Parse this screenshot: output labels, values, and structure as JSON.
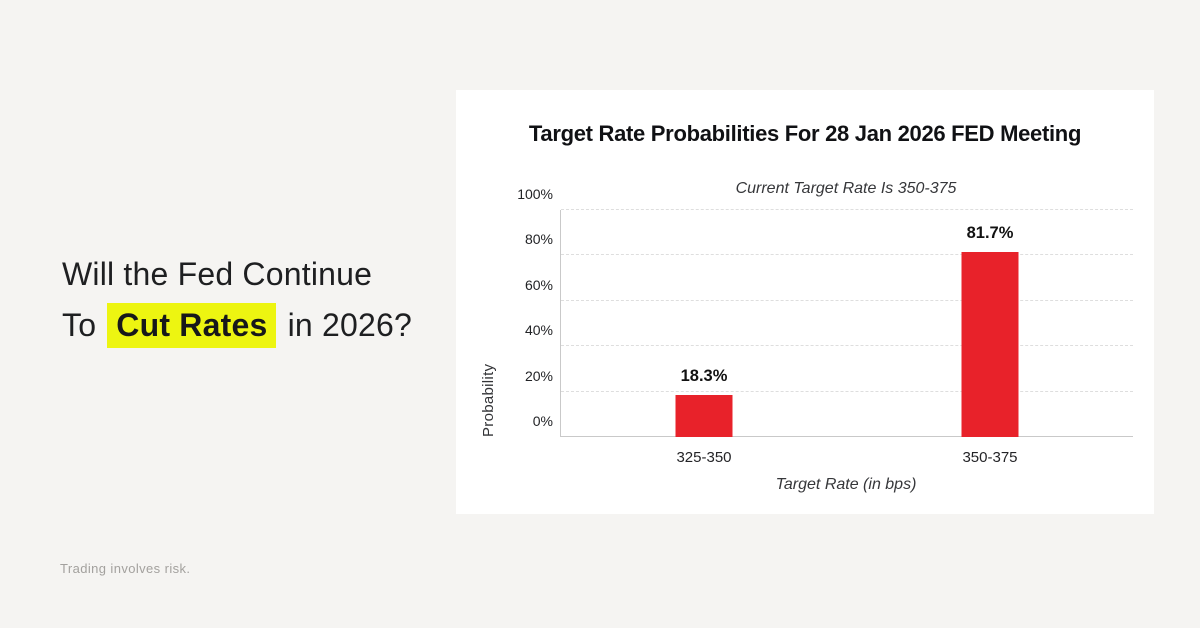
{
  "page": {
    "background": "#f5f4f2",
    "disclaimer": "Trading involves risk."
  },
  "headline": {
    "line1": "Will the Fed Continue",
    "line2_prefix": "To",
    "line2_highlight": "Cut Rates",
    "line2_suffix": "in 2026?",
    "highlight_color": "#edf511",
    "text_color": "#1e1f21"
  },
  "card": {
    "background": "#ffffff",
    "title": "Target Rate Probabilities For 28 Jan 2026 FED Meeting",
    "subtitle": "Current Target Rate Is 350-375"
  },
  "chart_data": {
    "type": "bar",
    "title": "Target Rate Probabilities For 28 Jan 2026 FED Meeting",
    "subtitle": "Current Target Rate Is 350-375",
    "categories": [
      "325-350",
      "350-375"
    ],
    "values": [
      18.3,
      81.7
    ],
    "value_labels": [
      "18.3%",
      "81.7%"
    ],
    "xlabel": "Target Rate (in bps)",
    "ylabel": "Probability",
    "ylim": [
      0,
      100
    ],
    "yticks": [
      0,
      20,
      40,
      60,
      80,
      100
    ],
    "ytick_suffix": "%",
    "bar_color": "#e8222a",
    "bar_centers_pct": [
      25,
      75
    ],
    "grid": "horizontal-dashed",
    "legend": "none"
  }
}
